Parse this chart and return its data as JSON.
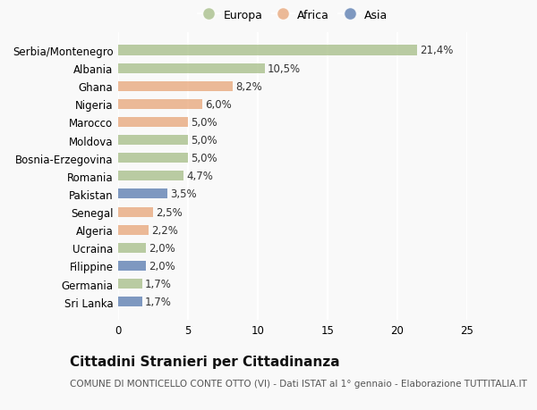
{
  "categories": [
    "Sri Lanka",
    "Germania",
    "Filippine",
    "Ucraina",
    "Algeria",
    "Senegal",
    "Pakistan",
    "Romania",
    "Bosnia-Erzegovina",
    "Moldova",
    "Marocco",
    "Nigeria",
    "Ghana",
    "Albania",
    "Serbia/Montenegro"
  ],
  "values": [
    1.7,
    1.7,
    2.0,
    2.0,
    2.2,
    2.5,
    3.5,
    4.7,
    5.0,
    5.0,
    5.0,
    6.0,
    8.2,
    10.5,
    21.4
  ],
  "labels": [
    "1,7%",
    "1,7%",
    "2,0%",
    "2,0%",
    "2,2%",
    "2,5%",
    "3,5%",
    "4,7%",
    "5,0%",
    "5,0%",
    "5,0%",
    "6,0%",
    "8,2%",
    "10,5%",
    "21,4%"
  ],
  "colors": [
    "#5b7db1",
    "#a8bf8a",
    "#5b7db1",
    "#a8bf8a",
    "#e8a87c",
    "#e8a87c",
    "#5b7db1",
    "#a8bf8a",
    "#a8bf8a",
    "#a8bf8a",
    "#e8a87c",
    "#e8a87c",
    "#e8a87c",
    "#a8bf8a",
    "#a8bf8a"
  ],
  "legend_labels": [
    "Europa",
    "Africa",
    "Asia"
  ],
  "legend_colors": [
    "#a8bf8a",
    "#e8a87c",
    "#5b7db1"
  ],
  "title": "Cittadini Stranieri per Cittadinanza",
  "subtitle": "COMUNE DI MONTICELLO CONTE OTTO (VI) - Dati ISTAT al 1° gennaio - Elaborazione TUTTITALIA.IT",
  "xlim": [
    0,
    25
  ],
  "xticks": [
    0,
    5,
    10,
    15,
    20,
    25
  ],
  "background_color": "#f9f9f9",
  "bar_alpha": 0.78,
  "grid_color": "#ffffff",
  "title_fontsize": 11,
  "subtitle_fontsize": 7.5,
  "tick_fontsize": 8.5,
  "label_fontsize": 8.5,
  "legend_fontsize": 9
}
